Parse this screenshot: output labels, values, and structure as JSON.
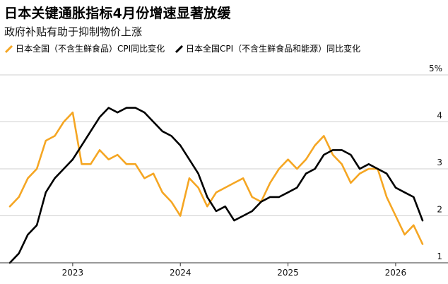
{
  "title": "日本关键通胀指标4月份增速显著放缓",
  "subtitle": "政府补贴有助于抑制物价上涨",
  "legend": [
    {
      "name": "日本全国（不含生鲜食品）CPI同比变化",
      "color": "#f5a623"
    },
    {
      "name": "日本全国CPI（不含生鲜食品和能源）同比变化",
      "color": "#000000"
    }
  ],
  "chart_data": {
    "type": "line",
    "title": "日本关键通胀指标4月份增速显著放缓",
    "subtitle": "政府补贴有助于抑制物价上涨",
    "ylim": [
      1,
      5
    ],
    "y_ticks": [
      {
        "value": 5,
        "label": "5%"
      },
      {
        "value": 4,
        "label": "4"
      },
      {
        "value": 3,
        "label": "3"
      },
      {
        "value": 2,
        "label": "2"
      },
      {
        "value": 1,
        "label": "1"
      }
    ],
    "x_range": [
      "2022-06",
      "2026-04"
    ],
    "x_ticks": [
      {
        "month": "2023-01",
        "label": "2023"
      },
      {
        "month": "2024-01",
        "label": "2024"
      },
      {
        "month": "2025-01",
        "label": "2025"
      },
      {
        "month": "2026-01",
        "label": "2026"
      }
    ],
    "x": [
      "2022-06",
      "2022-07",
      "2022-08",
      "2022-09",
      "2022-10",
      "2022-11",
      "2022-12",
      "2023-01",
      "2023-02",
      "2023-03",
      "2023-04",
      "2023-05",
      "2023-06",
      "2023-07",
      "2023-08",
      "2023-09",
      "2023-10",
      "2023-11",
      "2023-12",
      "2024-01",
      "2024-02",
      "2024-03",
      "2024-04",
      "2024-05",
      "2024-06",
      "2024-07",
      "2024-08",
      "2024-09",
      "2024-10",
      "2024-11",
      "2024-12",
      "2025-01",
      "2025-02",
      "2025-03",
      "2025-04",
      "2025-05",
      "2025-06",
      "2025-07",
      "2025-08",
      "2025-09",
      "2025-10",
      "2025-11",
      "2025-12",
      "2026-01",
      "2026-02",
      "2026-03",
      "2026-04"
    ],
    "series": [
      {
        "name": "日本全国（不含生鲜食品）CPI同比变化",
        "color": "#f5a623",
        "values": [
          2.2,
          2.4,
          2.8,
          3.0,
          3.6,
          3.7,
          4.0,
          4.2,
          3.1,
          3.1,
          3.4,
          3.2,
          3.3,
          3.1,
          3.1,
          2.8,
          2.9,
          2.5,
          2.3,
          2.0,
          2.8,
          2.6,
          2.2,
          2.5,
          2.6,
          2.7,
          2.8,
          2.4,
          2.3,
          2.7,
          3.0,
          3.2,
          3.0,
          3.2,
          3.5,
          3.7,
          3.3,
          3.1,
          2.7,
          2.9,
          3.0,
          3.0,
          2.4,
          2.0,
          1.6,
          1.8,
          1.4
        ]
      },
      {
        "name": "日本全国CPI（不含生鲜食品和能源）同比变化",
        "color": "#000000",
        "values": [
          1.0,
          1.2,
          1.6,
          1.8,
          2.5,
          2.8,
          3.0,
          3.2,
          3.5,
          3.8,
          4.1,
          4.3,
          4.2,
          4.3,
          4.3,
          4.2,
          4.0,
          3.8,
          3.7,
          3.5,
          3.2,
          2.9,
          2.4,
          2.1,
          2.2,
          1.9,
          2.0,
          2.1,
          2.3,
          2.4,
          2.4,
          2.5,
          2.6,
          2.9,
          3.0,
          3.3,
          3.4,
          3.4,
          3.3,
          3.0,
          3.1,
          3.0,
          2.9,
          2.6,
          2.5,
          2.4,
          1.9
        ]
      }
    ]
  }
}
